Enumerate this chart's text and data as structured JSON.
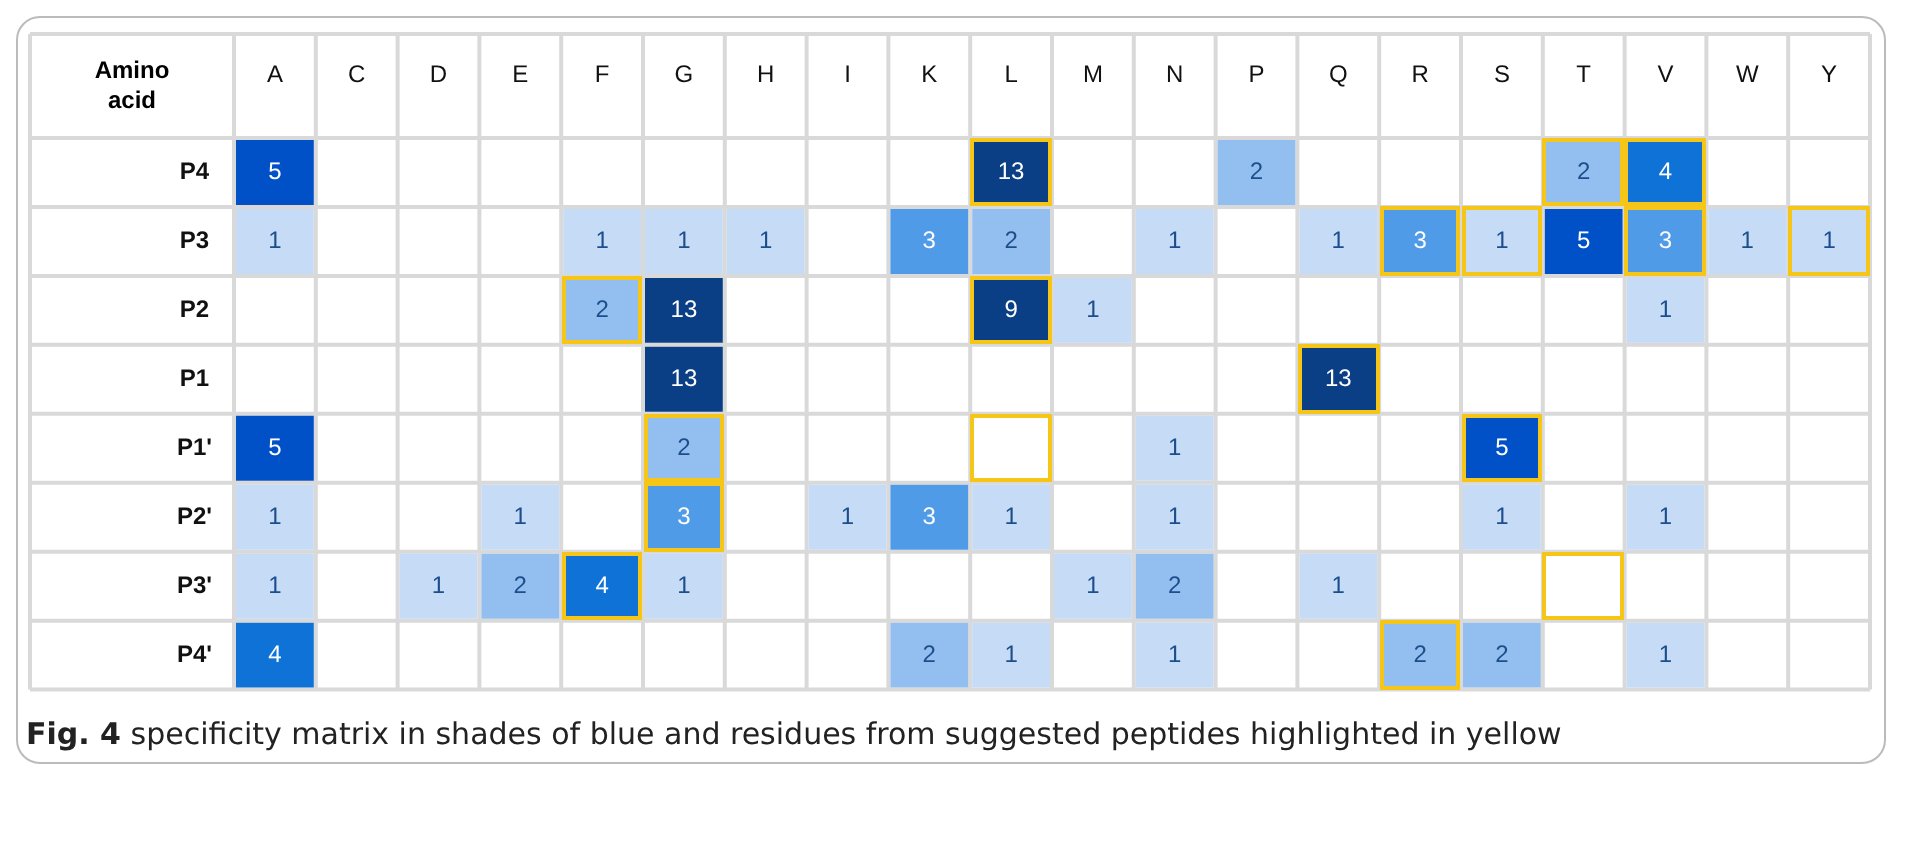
{
  "chart_data": {
    "type": "heatmap",
    "title": "Fig. 4",
    "subtitle": "specificity matrix in shades of blue and residues from suggested peptides highlighted in yellow",
    "ylabel": "Amino acid",
    "categories": [
      "A",
      "C",
      "D",
      "E",
      "F",
      "G",
      "H",
      "I",
      "K",
      "L",
      "M",
      "N",
      "P",
      "Q",
      "R",
      "S",
      "T",
      "V",
      "W",
      "Y"
    ],
    "y_categories": [
      "P4",
      "P3",
      "P2",
      "P1",
      "P1'",
      "P2'",
      "P3'",
      "P4'"
    ],
    "cells": [
      [
        5,
        null,
        null,
        null,
        null,
        null,
        null,
        null,
        null,
        13,
        null,
        null,
        2,
        null,
        null,
        null,
        2,
        4,
        null,
        null
      ],
      [
        1,
        null,
        null,
        null,
        1,
        1,
        1,
        null,
        3,
        2,
        null,
        1,
        null,
        1,
        3,
        1,
        5,
        3,
        1,
        1
      ],
      [
        null,
        null,
        null,
        null,
        2,
        13,
        null,
        null,
        null,
        9,
        1,
        null,
        null,
        null,
        null,
        null,
        null,
        1,
        null,
        null
      ],
      [
        null,
        null,
        null,
        null,
        null,
        13,
        null,
        null,
        null,
        null,
        null,
        null,
        null,
        13,
        null,
        null,
        null,
        null,
        null,
        null
      ],
      [
        5,
        null,
        null,
        null,
        null,
        2,
        null,
        null,
        null,
        null,
        null,
        1,
        null,
        null,
        null,
        5,
        null,
        null,
        null,
        null
      ],
      [
        1,
        null,
        null,
        1,
        null,
        3,
        null,
        1,
        3,
        1,
        null,
        1,
        null,
        null,
        null,
        1,
        null,
        1,
        null,
        null
      ],
      [
        1,
        null,
        1,
        2,
        4,
        1,
        null,
        null,
        null,
        null,
        1,
        2,
        null,
        1,
        null,
        null,
        null,
        null,
        null,
        null
      ],
      [
        4,
        null,
        null,
        null,
        null,
        null,
        null,
        null,
        2,
        1,
        null,
        1,
        null,
        null,
        2,
        2,
        null,
        1,
        null,
        null
      ]
    ],
    "data_labels": true
  }
}
